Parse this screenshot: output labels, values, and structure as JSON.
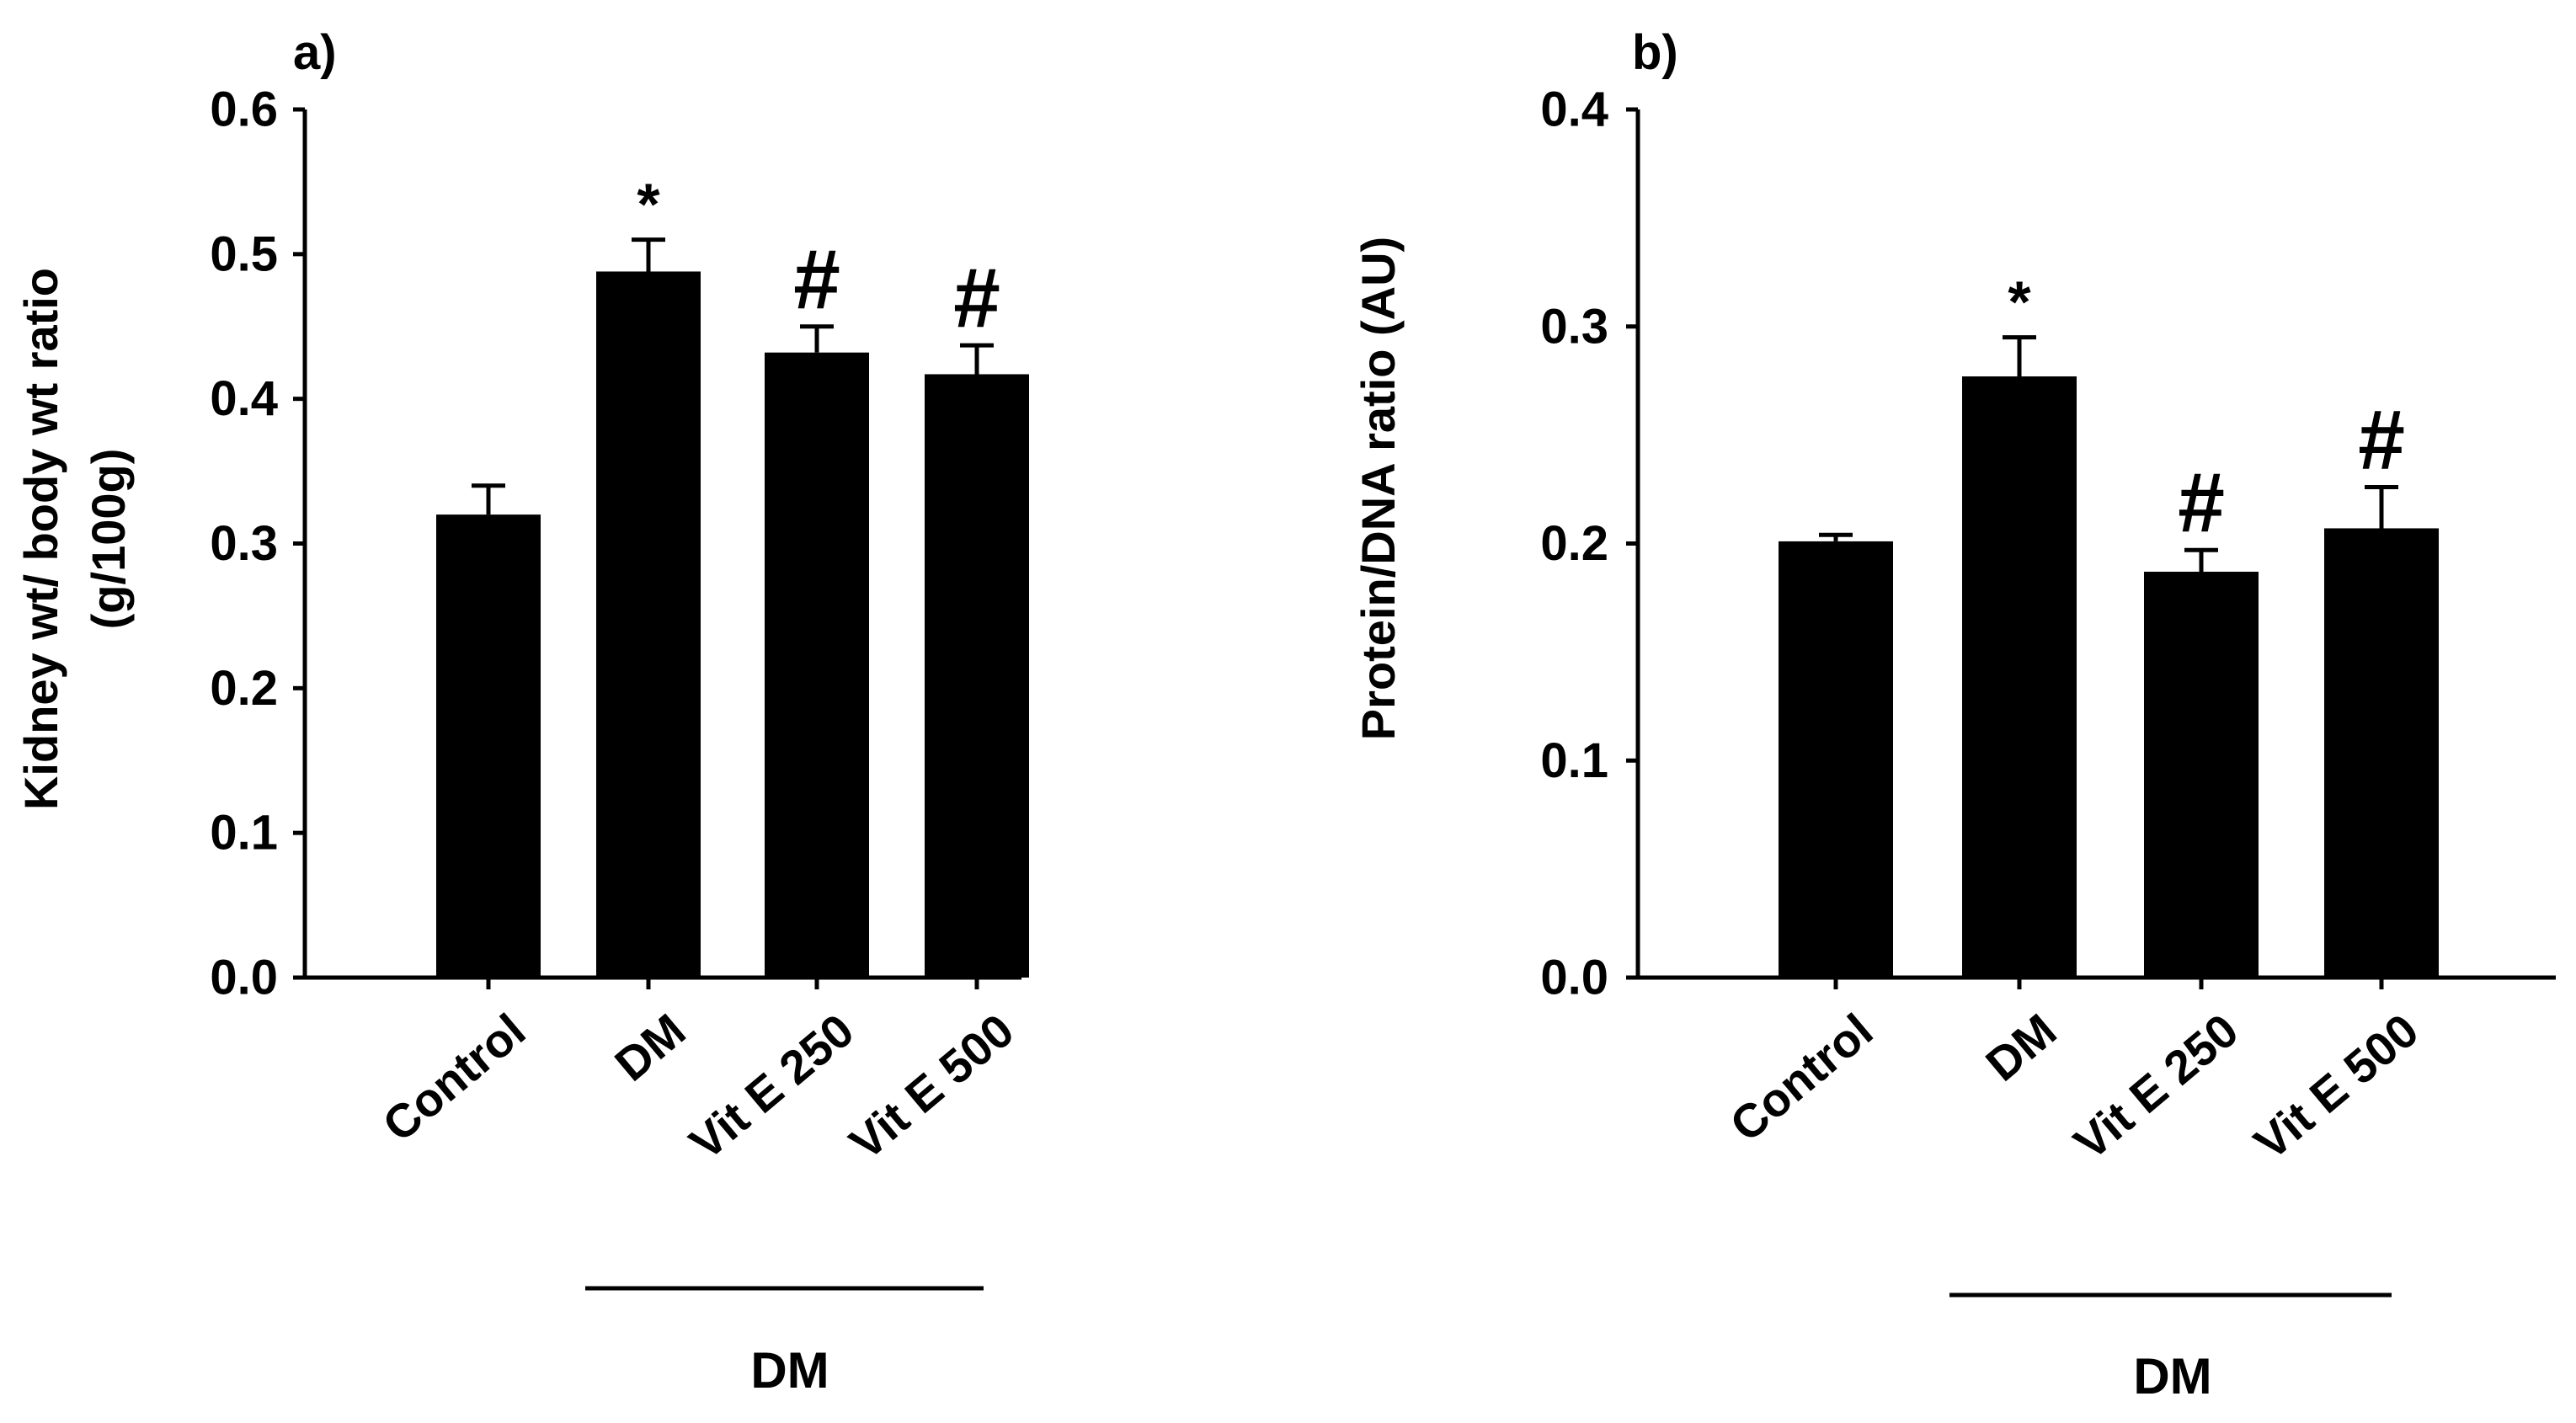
{
  "chart_data": [
    {
      "type": "bar",
      "panel_label": "a)",
      "categories": [
        "Control",
        "DM",
        "Vit E 250",
        "Vit E 500"
      ],
      "values": [
        0.32,
        0.488,
        0.432,
        0.417
      ],
      "errors": [
        0.02,
        0.022,
        0.018,
        0.02
      ],
      "significance": [
        "",
        "*",
        "#",
        "#"
      ],
      "ylabel": "Kidney wt/ body wt ratio",
      "ylabel_line2": "(g/100g)",
      "ylim": [
        0,
        0.6
      ],
      "yticks": [
        0,
        0.1,
        0.2,
        0.3,
        0.4,
        0.5,
        0.6
      ],
      "ytick_labels": [
        "0.0",
        "0.1",
        "0.2",
        "0.3",
        "0.4",
        "0.5",
        "0.6"
      ],
      "group_label": "DM",
      "group_span": [
        "DM",
        "Vit E 500"
      ],
      "grid": false,
      "bar_color": "#000000"
    },
    {
      "type": "bar",
      "panel_label": "b)",
      "categories": [
        "Control",
        "DM",
        "Vit E 250",
        "Vit E 500"
      ],
      "values": [
        0.201,
        0.277,
        0.187,
        0.207
      ],
      "errors": [
        0.003,
        0.018,
        0.01,
        0.019
      ],
      "significance": [
        "",
        "*",
        "#",
        "#"
      ],
      "ylabel": "Protein/DNA ratio (AU)",
      "ylabel_line2": "",
      "ylim": [
        0,
        0.4
      ],
      "yticks": [
        0,
        0.1,
        0.2,
        0.3,
        0.4
      ],
      "ytick_labels": [
        "0.0",
        "0.1",
        "0.2",
        "0.3",
        "0.4"
      ],
      "group_label": "DM",
      "group_span": [
        "DM",
        "Vit E 500"
      ],
      "grid": false,
      "bar_color": "#000000"
    }
  ]
}
